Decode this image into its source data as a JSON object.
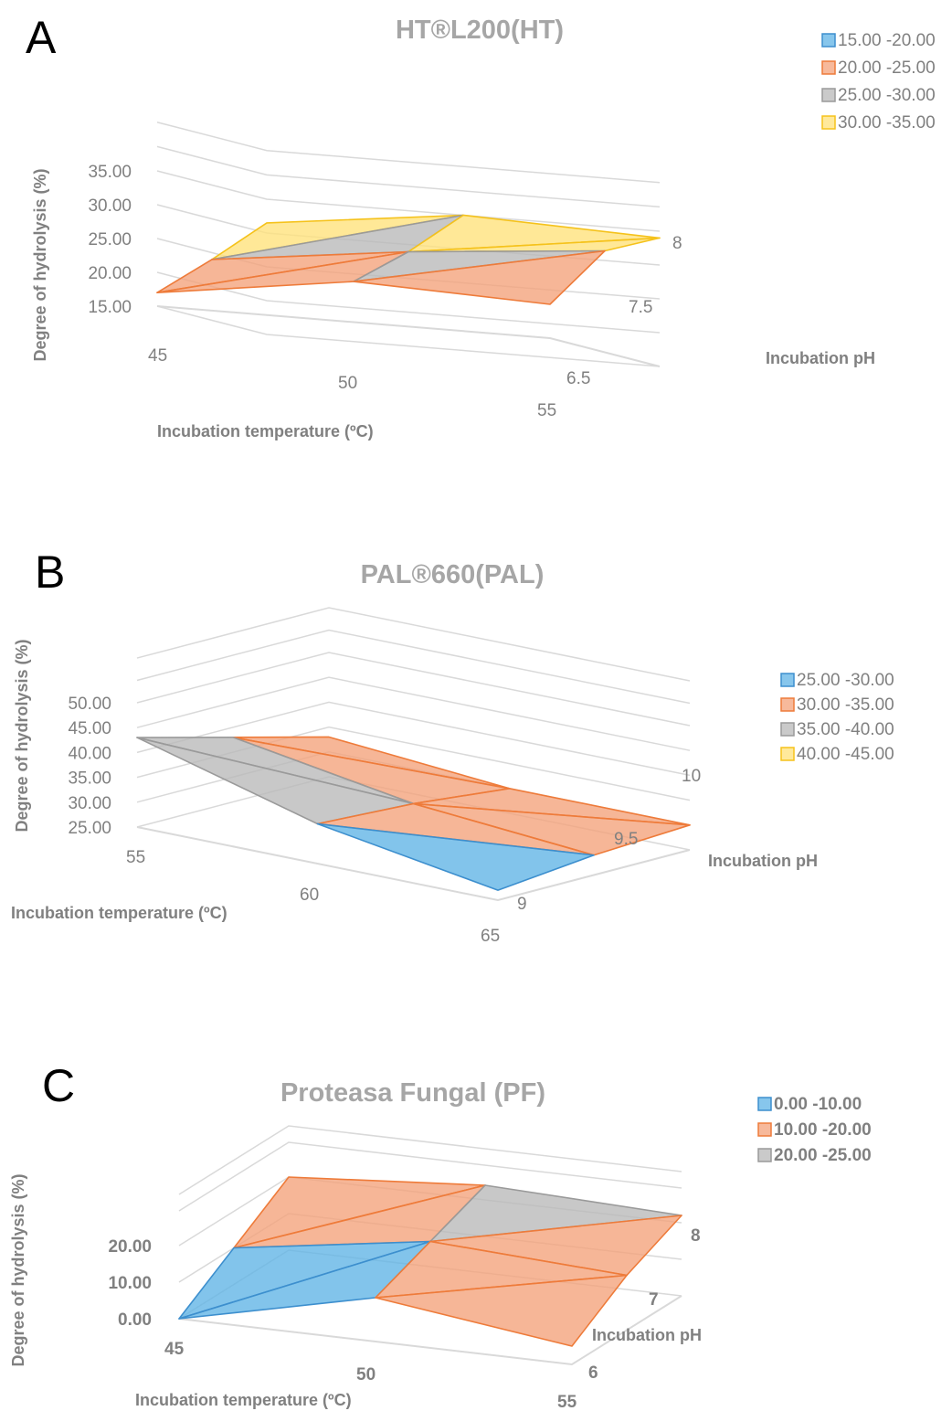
{
  "colors": {
    "blue_fill": "#5fb3e6",
    "blue_stroke": "#3d8fce",
    "orange_fill": "#f4a27a",
    "orange_stroke": "#ee7b3a",
    "gray_fill": "#b8b8b8",
    "gray_stroke": "#9a9a9a",
    "yellow_fill": "#ffe27a",
    "yellow_stroke": "#f5c21b"
  },
  "chart_data": [
    {
      "type": "surface",
      "panel": "A",
      "title": "HT®L200(HT)",
      "xlabel": "Incubation temperature (ºC)",
      "ylabel": "Incubation pH",
      "zlabel": "Degree of hydrolysis (%)",
      "x": [
        45,
        50,
        55
      ],
      "y": [
        6.5,
        7.5,
        8
      ],
      "x_ticks": [
        "45",
        "50",
        "55"
      ],
      "y_ticks": [
        "6.5",
        "7.5",
        "8"
      ],
      "z_ticks": [
        "15.00",
        "20.00",
        "25.00",
        "30.00",
        "35.00"
      ],
      "zlim": [
        15,
        35
      ],
      "z": [
        [
          17.0,
          21.0,
          20.0
        ],
        [
          24.0,
          27.5,
          30.0
        ],
        [
          31.5,
          35.0,
          34.0
        ]
      ],
      "legend": {
        "position": "top-right",
        "entries": [
          {
            "label": "15.00 -20.00",
            "color": "blue"
          },
          {
            "label": "20.00 -25.00",
            "color": "orange"
          },
          {
            "label": "25.00 -30.00",
            "color": "gray"
          },
          {
            "label": "30.00 -35.00",
            "color": "yellow"
          }
        ]
      }
    },
    {
      "type": "surface",
      "panel": "B",
      "title": "PAL®660(PAL)",
      "xlabel": "Incubation temperature (ºC)",
      "ylabel": "Incubation pH",
      "zlabel": "Degree of hydrolysis (%)",
      "x": [
        55,
        60,
        65
      ],
      "y": [
        9,
        9.5,
        10
      ],
      "x_ticks": [
        "55",
        "60",
        "65"
      ],
      "y_ticks": [
        "9",
        "9.5",
        "10"
      ],
      "z_ticks": [
        "25.00",
        "30.00",
        "35.00",
        "40.00",
        "45.00",
        "50.00"
      ],
      "zlim": [
        25,
        50
      ],
      "z": [
        [
          43.0,
          33.0,
          27.0
        ],
        [
          38.0,
          32.0,
          29.0
        ],
        [
          33.0,
          30.0,
          30.0
        ]
      ],
      "legend": {
        "position": "right",
        "entries": [
          {
            "label": "25.00 -30.00",
            "color": "blue"
          },
          {
            "label": "30.00 -35.00",
            "color": "orange"
          },
          {
            "label": "35.00 -40.00",
            "color": "gray"
          },
          {
            "label": "40.00 -45.00",
            "color": "yellow"
          }
        ]
      }
    },
    {
      "type": "surface",
      "panel": "C",
      "title": "Proteasa Fungal (PF)",
      "xlabel": "Incubation temperature (ºC)",
      "ylabel": "Incubation pH",
      "zlabel": "Degree of hydrolysis (%)",
      "x": [
        45,
        50,
        55
      ],
      "y": [
        6,
        7,
        8
      ],
      "x_ticks": [
        "45",
        "50",
        "55"
      ],
      "y_ticks": [
        "6",
        "7",
        "8"
      ],
      "z_ticks": [
        "0.00",
        "10.00",
        "20.00"
      ],
      "zlim": [
        0,
        25
      ],
      "z": [
        [
          0.0,
          12.0,
          5.0
        ],
        [
          10.0,
          18.0,
          15.0
        ],
        [
          20.0,
          24.0,
          22.0
        ]
      ],
      "legend": {
        "position": "top-right",
        "entries": [
          {
            "label": "0.00 -10.00",
            "color": "blue"
          },
          {
            "label": "10.00 -20.00",
            "color": "orange"
          },
          {
            "label": "20.00 -25.00",
            "color": "gray"
          }
        ]
      }
    }
  ]
}
